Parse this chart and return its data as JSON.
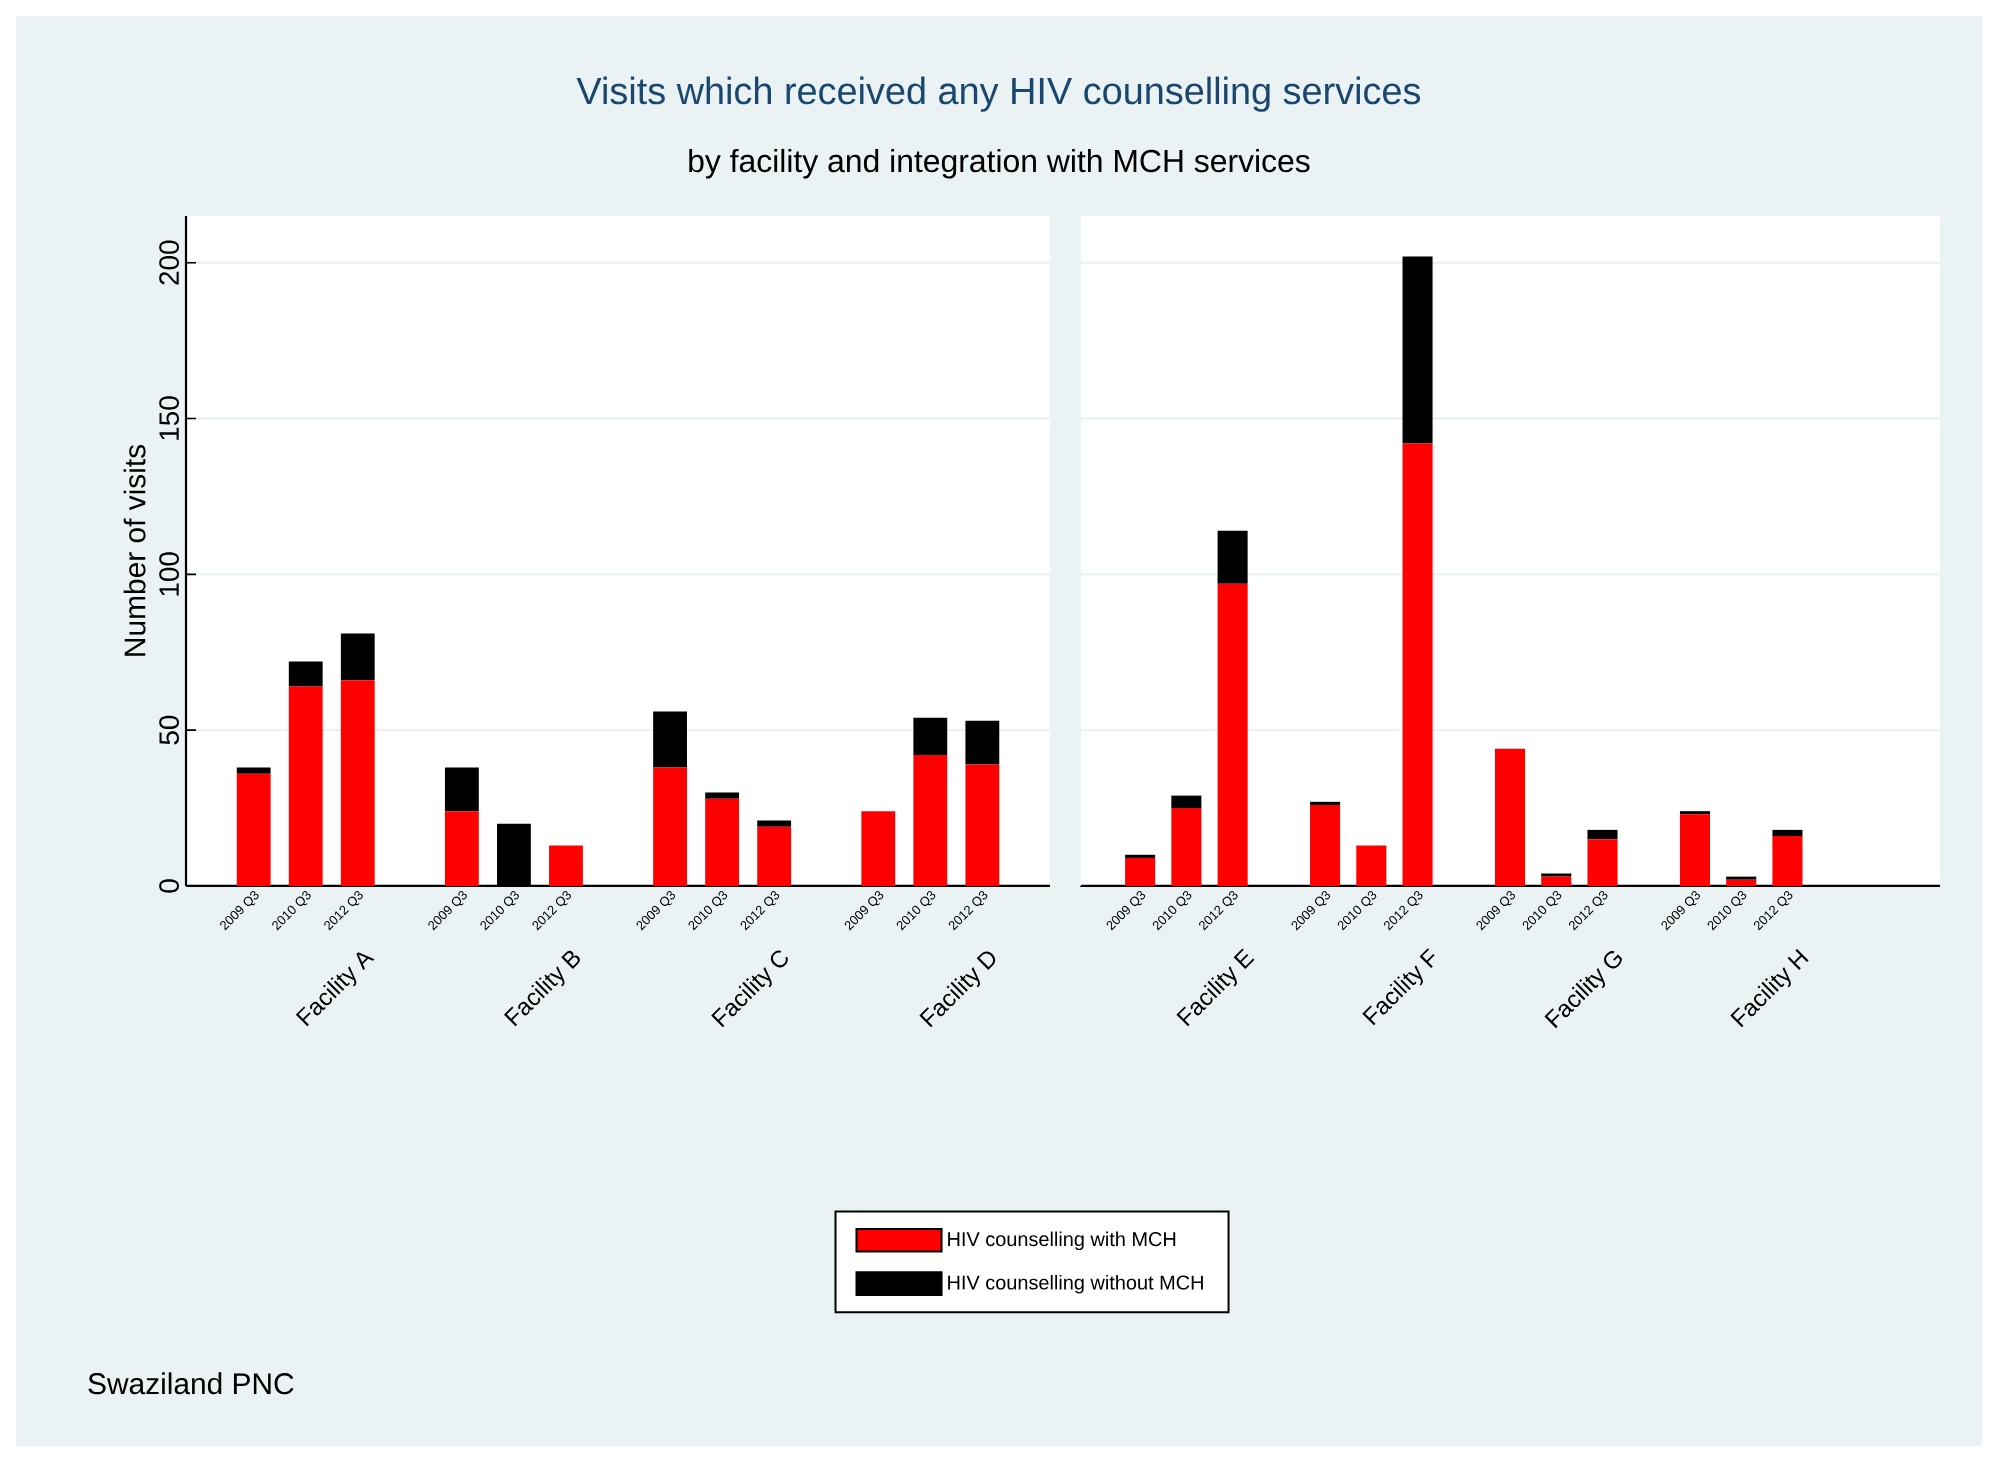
{
  "chart_data": [
    {
      "type": "bar",
      "stacked": true,
      "title": "Visits which received any HIV counselling services",
      "subtitle": "by facility and integration with MCH services",
      "ylabel": "Number of visits",
      "categories": [
        "2009 Q3",
        "2010 Q3",
        "2012 Q3",
        null,
        "2009 Q3",
        "2010 Q3",
        "2012 Q3",
        null,
        "2009 Q3",
        "2010 Q3",
        "2012 Q3",
        null,
        "2009 Q3",
        "2010 Q3",
        "2012 Q3"
      ],
      "series": [
        {
          "name": "HIV counselling with MCH",
          "color": "#ff0000",
          "values": [
            36,
            64,
            66,
            null,
            24,
            0,
            13,
            null,
            38,
            28,
            19,
            null,
            24,
            42,
            39
          ]
        },
        {
          "name": "HIV counselling without MCH",
          "color": "#000000",
          "values": [
            2,
            8,
            15,
            null,
            14,
            20,
            0,
            null,
            18,
            2,
            2,
            null,
            0,
            12,
            14
          ]
        }
      ],
      "ylim": [
        0,
        215
      ],
      "yticks": [
        0,
        50,
        100,
        150,
        200
      ],
      "grid": "y",
      "legend": "bottom",
      "annotations": [
        "Facility A",
        "Facility B",
        "Facility C",
        "Facility D",
        "Swaziland PNC"
      ]
    },
    {
      "type": "bar",
      "stacked": true,
      "categories": [
        "2009 Q3",
        "2010 Q3",
        "2012 Q3",
        null,
        "2009 Q3",
        "2010 Q3",
        "2012 Q3",
        null,
        "2009 Q3",
        "2010 Q3",
        "2012 Q3",
        null,
        "2009 Q3",
        "2010 Q3",
        "2012 Q3",
        null,
        null
      ],
      "series": [
        {
          "color": "#ff0000",
          "values": [
            9,
            25,
            97,
            null,
            26,
            13,
            142,
            null,
            44,
            3,
            15,
            null,
            23,
            2,
            16,
            null,
            null
          ]
        },
        {
          "color": "#000000",
          "values": [
            1,
            4,
            17,
            null,
            1,
            0,
            60,
            null,
            0,
            1,
            3,
            null,
            1,
            1,
            2,
            null,
            null
          ]
        }
      ],
      "ylim": [
        0,
        215
      ],
      "yticks": [
        0,
        50,
        100,
        150,
        200
      ],
      "grid": "y",
      "tick_labels": "x",
      "annotations": [
        "Facility E",
        "Facility F",
        "Facility G",
        "Facility H"
      ]
    }
  ]
}
